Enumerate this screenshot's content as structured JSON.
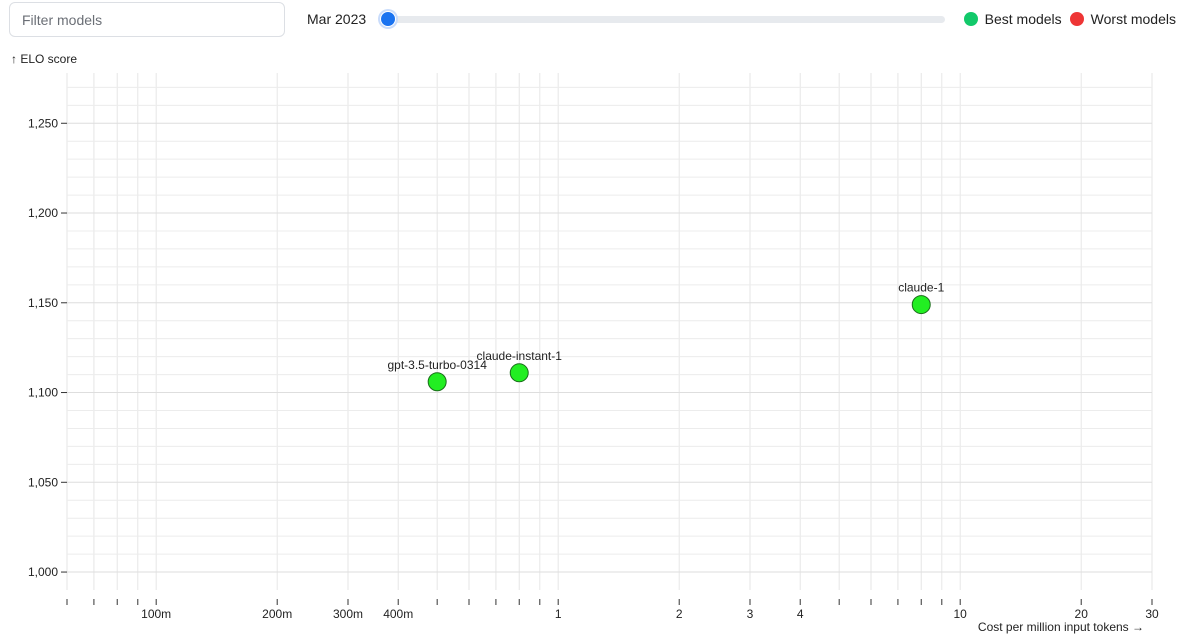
{
  "filter": {
    "placeholder": "Filter models"
  },
  "timeline": {
    "date_label": "Mar 2023",
    "position": 0
  },
  "legend": {
    "best": {
      "label": "Best models",
      "color": "#12c96a"
    },
    "worst": {
      "label": "Worst models",
      "color": "#ee3535"
    }
  },
  "chart_data": {
    "type": "scatter",
    "xlabel": "Cost per million input tokens →",
    "ylabel": "↑ ELO score",
    "x_scale": "log",
    "xlim": [
      0.06,
      30
    ],
    "ylim": [
      990,
      1278
    ],
    "x_ticks": [
      {
        "value": 0.1,
        "label": "100m"
      },
      {
        "value": 0.2,
        "label": "200m"
      },
      {
        "value": 0.3,
        "label": "300m"
      },
      {
        "value": 0.4,
        "label": "400m"
      },
      {
        "value": 1,
        "label": "1"
      },
      {
        "value": 2,
        "label": "2"
      },
      {
        "value": 3,
        "label": "3"
      },
      {
        "value": 4,
        "label": "4"
      },
      {
        "value": 10,
        "label": "10"
      },
      {
        "value": 20,
        "label": "20"
      },
      {
        "value": 30,
        "label": "30"
      }
    ],
    "y_ticks": [
      {
        "value": 1000,
        "label": "1,000"
      },
      {
        "value": 1050,
        "label": "1,050"
      },
      {
        "value": 1100,
        "label": "1,100"
      },
      {
        "value": 1150,
        "label": "1,150"
      },
      {
        "value": 1200,
        "label": "1,200"
      },
      {
        "value": 1250,
        "label": "1,250"
      }
    ],
    "grid": true,
    "point_color": "#22ee22",
    "points": [
      {
        "label": "gpt-3.5-turbo-0314",
        "x": 0.5,
        "y": 1106
      },
      {
        "label": "claude-instant-1",
        "x": 0.8,
        "y": 1111
      },
      {
        "label": "claude-1",
        "x": 8,
        "y": 1149
      }
    ]
  }
}
